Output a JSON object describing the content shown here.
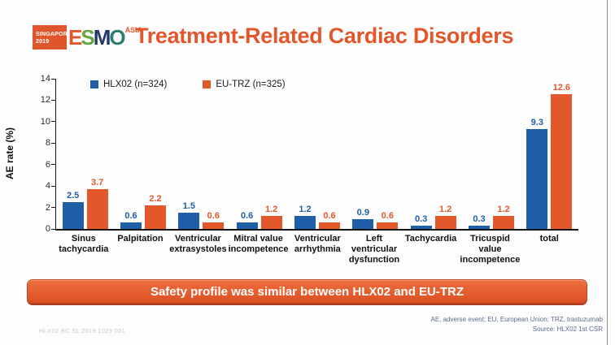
{
  "header": {
    "logo": {
      "badge": {
        "line1": "SINGAPORE",
        "line2": "2019",
        "bg": "#e0562c"
      },
      "letters": [
        {
          "char": "E",
          "color": "#e2562c"
        },
        {
          "char": "S",
          "color": "#6aa63f"
        },
        {
          "char": "M",
          "color": "#20386b"
        },
        {
          "char": "O",
          "color": "#2a7f6f"
        }
      ],
      "suffix": {
        "text": "ASIA",
        "color": "#e2562c"
      }
    },
    "title": {
      "text": "Treatment-Related Cardiac Disorders",
      "color": "#e2562c"
    }
  },
  "chart_data": {
    "type": "bar",
    "title": "",
    "xlabel": "",
    "ylabel": "AE rate (%)",
    "ylim": [
      0,
      14
    ],
    "yticks": [
      0,
      2,
      4,
      6,
      8,
      10,
      12,
      14
    ],
    "grid": false,
    "legend_position": "top-left-inside",
    "categories": [
      "Sinus tachycardia",
      "Palpitation",
      "Ventricular extrasystoles",
      "Mitral value incompetence",
      "Ventricular arrhythmia",
      "Left ventricular dysfunction",
      "Tachycardia",
      "Tricuspid value incompetence",
      "total"
    ],
    "series": [
      {
        "name": "HLX02 (n=324)",
        "color": "#1f5fa8",
        "values": [
          2.5,
          0.6,
          1.5,
          0.6,
          1.2,
          0.9,
          0.3,
          0.3,
          9.3
        ]
      },
      {
        "name": "EU-TRZ (n=325)",
        "color": "#e2582a",
        "values": [
          3.7,
          2.2,
          0.6,
          1.2,
          0.6,
          0.6,
          1.2,
          1.2,
          12.6
        ]
      }
    ]
  },
  "banner": {
    "text": "Safety profile was similar between HLX02 and EU-TRZ",
    "bg_top": "#ec6f3c",
    "bg_bottom": "#dc4f24"
  },
  "footer": {
    "left_code": "HLX02 BC SL 2019 1029 001",
    "note_line1": "AE, adverse event; EU, European Union; TRZ, trastuzumab",
    "note_line2": "Source: HLX02 1st CSR"
  }
}
